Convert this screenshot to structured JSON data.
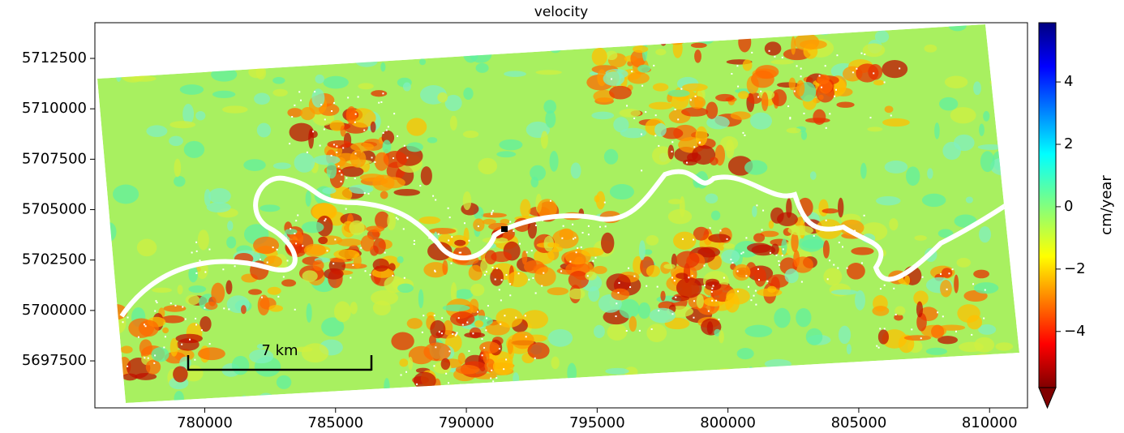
{
  "title": "velocity",
  "x_axis": {
    "lim": [
      775800,
      811450
    ],
    "ticks": [
      780000,
      785000,
      790000,
      795000,
      800000,
      805000,
      810000
    ]
  },
  "y_axis": {
    "lim": [
      5695170,
      5714270
    ],
    "ticks": [
      5697500,
      5700000,
      5702500,
      5705000,
      5707500,
      5710000,
      5712500
    ]
  },
  "colorbar": {
    "label": "cm/year",
    "lim": [
      -5.8,
      5.9
    ],
    "ticks": [
      {
        "value": -4,
        "label": "−4"
      },
      {
        "value": -2,
        "label": "−2"
      },
      0,
      2,
      4
    ]
  },
  "scale_bar": {
    "label": "7 km"
  }
}
